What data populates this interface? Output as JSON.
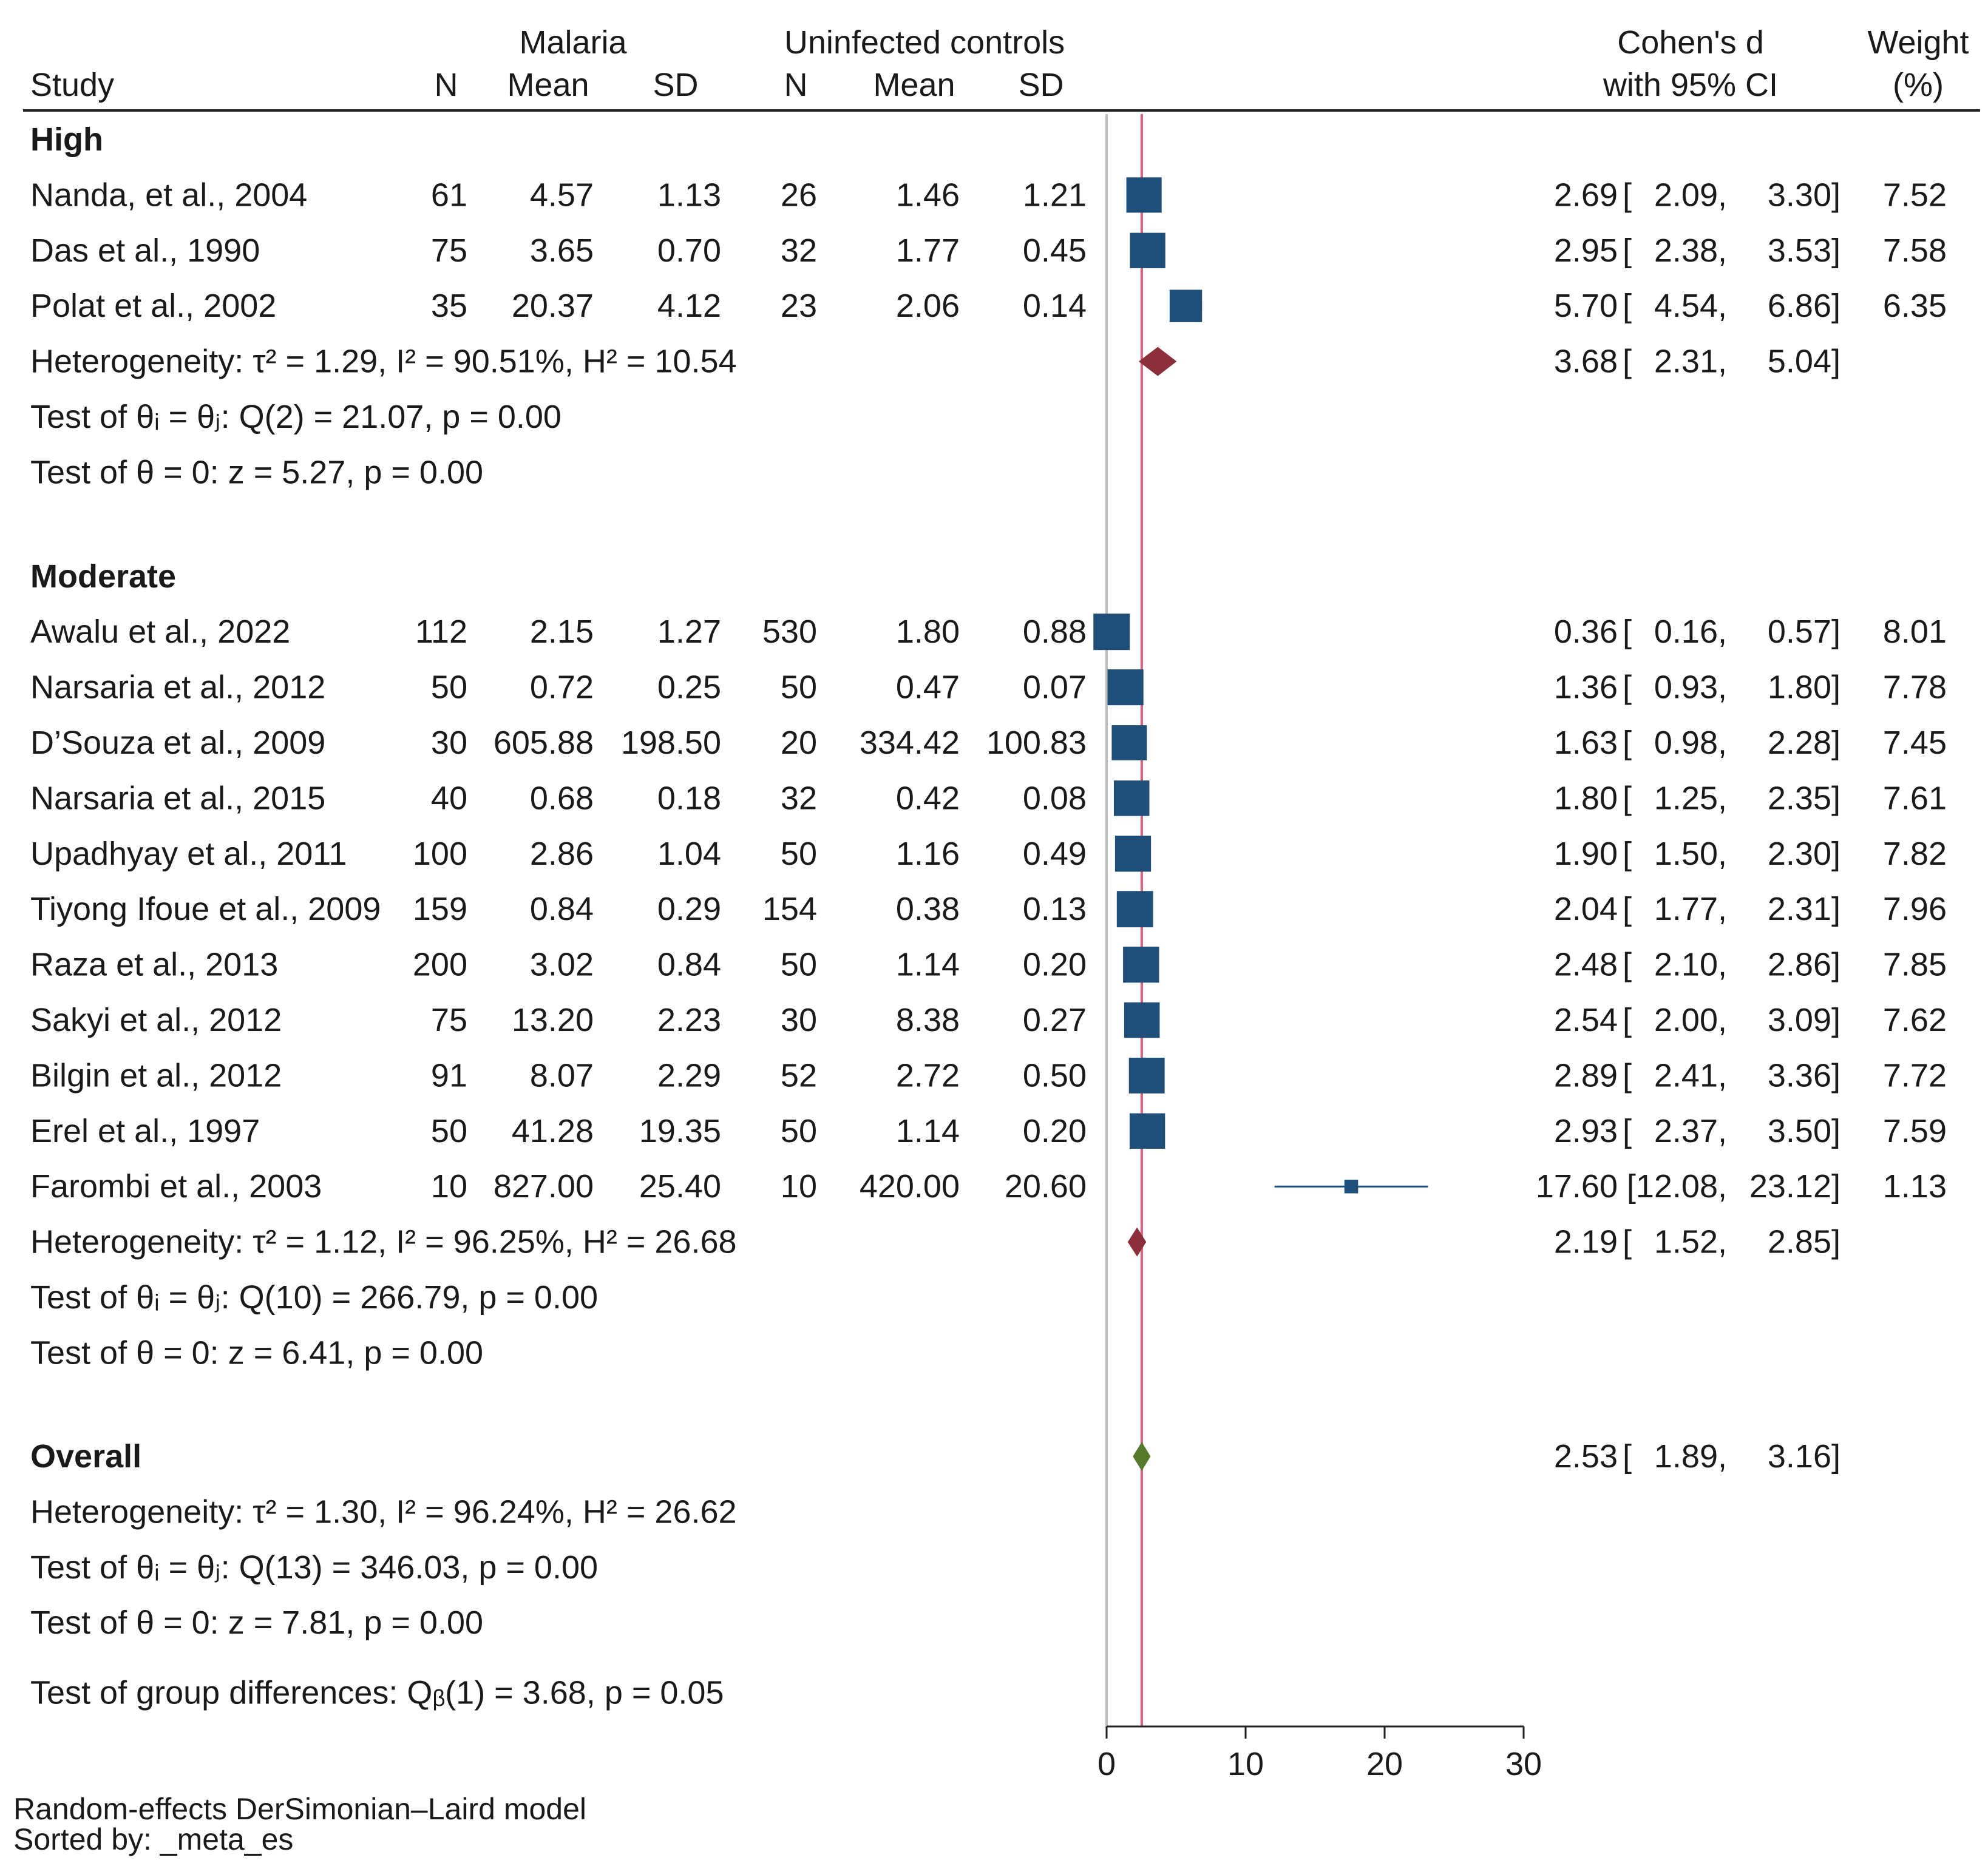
{
  "chart_data": {
    "type": "forest",
    "model_note": "Random-effects DerSimonian–Laird model",
    "sort_note": "Sorted by: _meta_es",
    "columns": {
      "study": "Study",
      "group1": "Malaria",
      "group2": "Uninfected controls",
      "n": "N",
      "mean": "Mean",
      "sd": "SD",
      "effect_line1": "Cohen's d",
      "effect_line2": "with 95% CI",
      "weight_line1": "Weight",
      "weight_line2": "(%)"
    },
    "x_axis": {
      "min": 0,
      "max": 30,
      "ticks": [
        0,
        10,
        20,
        30
      ],
      "ref_line": 0,
      "overall_line": 2.53
    },
    "colors": {
      "square": "#1f4e79",
      "subgroup_diamond": "#8b2f3a",
      "overall_diamond": "#557a2c",
      "overall_line": "#d9637d",
      "ref_line": "#bdbdbd"
    },
    "groups": [
      {
        "name": "High",
        "studies": [
          {
            "study": "Nanda, et al., 2004",
            "n1": "61",
            "mean1": "4.57",
            "sd1": "1.13",
            "n2": "26",
            "mean2": "1.46",
            "sd2": "1.21",
            "d": 2.69,
            "lo": 2.09,
            "hi": 3.3,
            "d_text": "2.69",
            "lo_text": "2.09,",
            "hi_text": "3.30]",
            "weight": "7.52"
          },
          {
            "study": "Das et al., 1990",
            "n1": "75",
            "mean1": "3.65",
            "sd1": "0.70",
            "n2": "32",
            "mean2": "1.77",
            "sd2": "0.45",
            "d": 2.95,
            "lo": 2.38,
            "hi": 3.53,
            "d_text": "2.95",
            "lo_text": "2.38,",
            "hi_text": "3.53]",
            "weight": "7.58"
          },
          {
            "study": "Polat et al., 2002",
            "n1": "35",
            "mean1": "20.37",
            "sd1": "4.12",
            "n2": "23",
            "mean2": "2.06",
            "sd2": "0.14",
            "d": 5.7,
            "lo": 4.54,
            "hi": 6.86,
            "d_text": "5.70",
            "lo_text": "4.54,",
            "hi_text": "6.86]",
            "weight": "6.35"
          }
        ],
        "summary": {
          "d": 3.68,
          "lo": 2.31,
          "hi": 5.04,
          "d_text": "3.68",
          "lo_text": "2.31,",
          "hi_text": "5.04]"
        },
        "stats": [
          "Heterogeneity: τ² = 1.29, I² = 90.51%, H² = 10.54",
          "Test of θᵢ = θⱼ: Q(2) = 21.07, p = 0.00",
          "Test of θ = 0: z = 5.27, p = 0.00"
        ]
      },
      {
        "name": "Moderate",
        "studies": [
          {
            "study": "Awalu et al., 2022",
            "n1": "112",
            "mean1": "2.15",
            "sd1": "1.27",
            "n2": "530",
            "mean2": "1.80",
            "sd2": "0.88",
            "d": 0.36,
            "lo": 0.16,
            "hi": 0.57,
            "d_text": "0.36",
            "lo_text": "0.16,",
            "hi_text": "0.57]",
            "weight": "8.01"
          },
          {
            "study": "Narsaria et al., 2012",
            "n1": "50",
            "mean1": "0.72",
            "sd1": "0.25",
            "n2": "50",
            "mean2": "0.47",
            "sd2": "0.07",
            "d": 1.36,
            "lo": 0.93,
            "hi": 1.8,
            "d_text": "1.36",
            "lo_text": "0.93,",
            "hi_text": "1.80]",
            "weight": "7.78"
          },
          {
            "study": "D’Souza et al., 2009",
            "n1": "30",
            "mean1": "605.88",
            "sd1": "198.50",
            "n2": "20",
            "mean2": "334.42",
            "sd2": "100.83",
            "d": 1.63,
            "lo": 0.98,
            "hi": 2.28,
            "d_text": "1.63",
            "lo_text": "0.98,",
            "hi_text": "2.28]",
            "weight": "7.45"
          },
          {
            "study": "Narsaria et al., 2015",
            "n1": "40",
            "mean1": "0.68",
            "sd1": "0.18",
            "n2": "32",
            "mean2": "0.42",
            "sd2": "0.08",
            "d": 1.8,
            "lo": 1.25,
            "hi": 2.35,
            "d_text": "1.80",
            "lo_text": "1.25,",
            "hi_text": "2.35]",
            "weight": "7.61"
          },
          {
            "study": "Upadhyay et al., 2011",
            "n1": "100",
            "mean1": "2.86",
            "sd1": "1.04",
            "n2": "50",
            "mean2": "1.16",
            "sd2": "0.49",
            "d": 1.9,
            "lo": 1.5,
            "hi": 2.3,
            "d_text": "1.90",
            "lo_text": "1.50,",
            "hi_text": "2.30]",
            "weight": "7.82"
          },
          {
            "study": "Tiyong Ifoue et al., 2009",
            "n1": "159",
            "mean1": "0.84",
            "sd1": "0.29",
            "n2": "154",
            "mean2": "0.38",
            "sd2": "0.13",
            "d": 2.04,
            "lo": 1.77,
            "hi": 2.31,
            "d_text": "2.04",
            "lo_text": "1.77,",
            "hi_text": "2.31]",
            "weight": "7.96"
          },
          {
            "study": "Raza et al., 2013",
            "n1": "200",
            "mean1": "3.02",
            "sd1": "0.84",
            "n2": "50",
            "mean2": "1.14",
            "sd2": "0.20",
            "d": 2.48,
            "lo": 2.1,
            "hi": 2.86,
            "d_text": "2.48",
            "lo_text": "2.10,",
            "hi_text": "2.86]",
            "weight": "7.85"
          },
          {
            "study": "Sakyi et al., 2012",
            "n1": "75",
            "mean1": "13.20",
            "sd1": "2.23",
            "n2": "30",
            "mean2": "8.38",
            "sd2": "0.27",
            "d": 2.54,
            "lo": 2.0,
            "hi": 3.09,
            "d_text": "2.54",
            "lo_text": "2.00,",
            "hi_text": "3.09]",
            "weight": "7.62"
          },
          {
            "study": "Bilgin et al., 2012",
            "n1": "91",
            "mean1": "8.07",
            "sd1": "2.29",
            "n2": "52",
            "mean2": "2.72",
            "sd2": "0.50",
            "d": 2.89,
            "lo": 2.41,
            "hi": 3.36,
            "d_text": "2.89",
            "lo_text": "2.41,",
            "hi_text": "3.36]",
            "weight": "7.72"
          },
          {
            "study": "Erel et al., 1997",
            "n1": "50",
            "mean1": "41.28",
            "sd1": "19.35",
            "n2": "50",
            "mean2": "1.14",
            "sd2": "0.20",
            "d": 2.93,
            "lo": 2.37,
            "hi": 3.5,
            "d_text": "2.93",
            "lo_text": "2.37,",
            "hi_text": "3.50]",
            "weight": "7.59"
          },
          {
            "study": "Farombi et al., 2003",
            "n1": "10",
            "mean1": "827.00",
            "sd1": "25.40",
            "n2": "10",
            "mean2": "420.00",
            "sd2": "20.60",
            "d": 17.6,
            "lo": 12.08,
            "hi": 23.12,
            "d_text": "17.60",
            "lo_text": "[12.08,",
            "hi_text": "23.12]",
            "weight": "1.13"
          }
        ],
        "summary": {
          "d": 2.19,
          "lo": 1.52,
          "hi": 2.85,
          "d_text": "2.19",
          "lo_text": "1.52,",
          "hi_text": "2.85]"
        },
        "stats": [
          "Heterogeneity: τ² = 1.12, I² = 96.25%, H² = 26.68",
          "Test of θᵢ = θⱼ: Q(10) = 266.79, p = 0.00",
          "Test of θ = 0: z = 6.41, p = 0.00"
        ]
      }
    ],
    "overall": {
      "name": "Overall",
      "d": 2.53,
      "lo": 1.89,
      "hi": 3.16,
      "d_text": "2.53",
      "lo_text": "1.89,",
      "hi_text": "3.16]",
      "stats": [
        "Heterogeneity: τ² = 1.30, I² = 96.24%, H² = 26.62",
        "Test of θᵢ = θⱼ: Q(13) = 346.03, p = 0.00",
        "Test of θ = 0: z = 7.81, p = 0.00"
      ]
    },
    "group_test": "Test of group differences: Qᵦ(1) = 3.68, p = 0.05"
  }
}
